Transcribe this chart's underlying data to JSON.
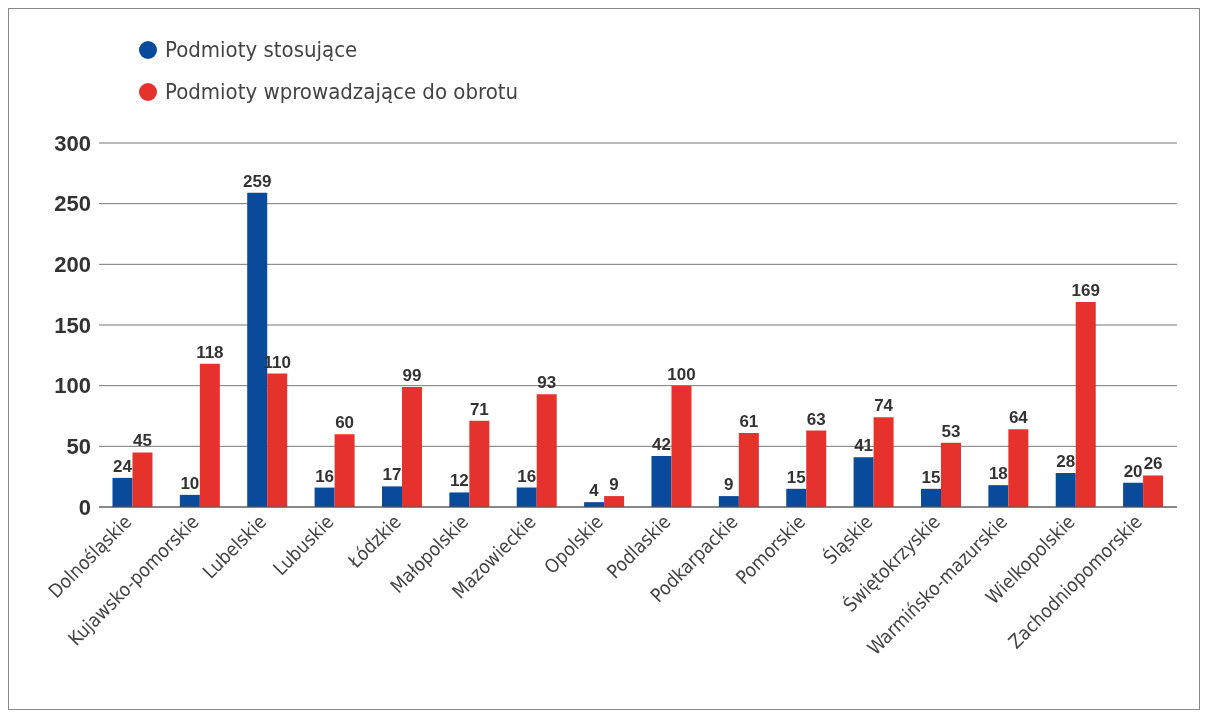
{
  "chart_data": {
    "type": "bar",
    "categories": [
      "Dolnośląskie",
      "Kujawsko-pomorskie",
      "Lubelskie",
      "Lubuskie",
      "Łódzkie",
      "Małopolskie",
      "Mazowieckie",
      "Opolskie",
      "Podlaskie",
      "Podkarpackie",
      "Pomorskie",
      "Śląskie",
      "Świętokrzyskie",
      "Warmińsko-mazurskie",
      "Wielkopolskie",
      "Zachodniopomorskie"
    ],
    "series": [
      {
        "name": "Podmioty stosujące",
        "color": "#0a4a9a",
        "values": [
          24,
          10,
          259,
          16,
          17,
          12,
          16,
          4,
          42,
          9,
          15,
          41,
          15,
          18,
          28,
          20
        ]
      },
      {
        "name": "Podmioty wprowadzające  do obrotu",
        "color": "#e5322d",
        "values": [
          45,
          118,
          110,
          60,
          99,
          71,
          93,
          9,
          100,
          61,
          63,
          74,
          53,
          64,
          169,
          26
        ]
      }
    ],
    "ylim": [
      0,
      300
    ],
    "yticks": [
      0,
      50,
      100,
      150,
      200,
      250,
      300
    ],
    "grid": "y",
    "legend": "top left",
    "data_labels": true
  }
}
